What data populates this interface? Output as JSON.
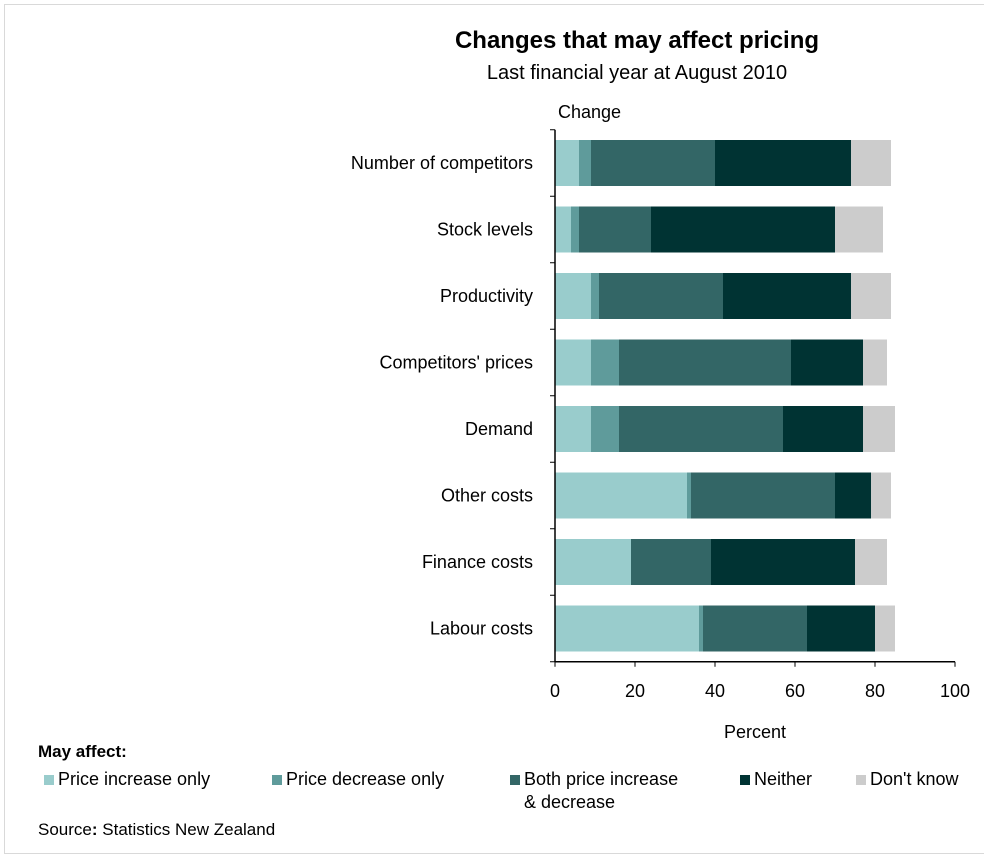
{
  "chart_data": {
    "type": "bar",
    "orientation": "horizontal",
    "stacked": true,
    "title": "Changes that may affect pricing",
    "subtitle": "Last financial year at August 2010",
    "category_axis_title": "Change",
    "xlabel": "Percent",
    "xlim": [
      0,
      100
    ],
    "xticks": [
      "0",
      "20",
      "40",
      "60",
      "80",
      "100"
    ],
    "categories": [
      "Number of competitors",
      "Stock levels",
      "Productivity",
      "Competitors' prices",
      "Demand",
      "Other costs",
      "Finance costs",
      "Labour costs"
    ],
    "legend_title": "May affect:",
    "legend_position": "bottom",
    "series": [
      {
        "name": "Price increase only",
        "color": "#99cccc",
        "values": [
          6,
          4,
          9,
          9,
          9,
          33,
          19,
          36
        ]
      },
      {
        "name": "Price decrease only",
        "color": "#5f9b9b",
        "values": [
          3,
          2,
          2,
          7,
          7,
          1,
          0,
          1
        ]
      },
      {
        "name": "Both price increase\n& decrease",
        "color": "#336666",
        "values": [
          31,
          18,
          31,
          43,
          41,
          36,
          20,
          26
        ]
      },
      {
        "name": "Neither",
        "color": "#003333",
        "values": [
          34,
          46,
          32,
          18,
          20,
          9,
          36,
          17
        ]
      },
      {
        "name": "Don't know",
        "color": "#cccccc",
        "values": [
          10,
          12,
          10,
          6,
          8,
          5,
          8,
          5
        ]
      }
    ],
    "grid": false
  },
  "source": {
    "label": "Source",
    "separator": ":",
    "text": " Statistics New Zealand"
  }
}
